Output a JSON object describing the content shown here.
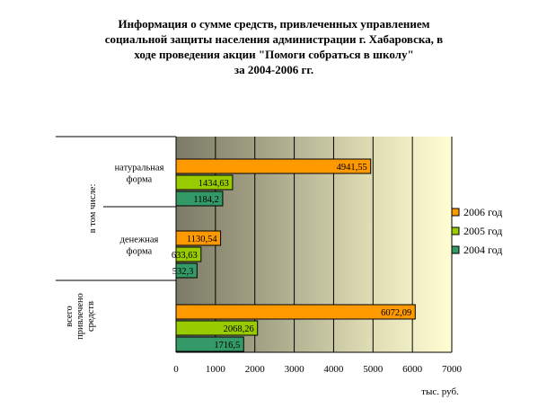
{
  "chart_data": {
    "type": "bar",
    "orientation": "horizontal",
    "title": "Информация о сумме средств, привлеченных управлением социальной защиты населения администрации г. Хабаровска, в ходе проведения акции \"Помоги собраться в школу\" за 2004-2006 гг.",
    "title_lines": [
      "Информация о сумме средств, привлеченных управлением",
      "социальной защиты населения администрации г. Хабаровска, в",
      "ходе проведения акции \"Помоги собраться в школу\"",
      "за 2004-2006 гг."
    ],
    "xlabel": "тыс. руб.",
    "xlim": [
      0,
      7000
    ],
    "xticks": [
      "0",
      "1000",
      "2000",
      "3000",
      "4000",
      "5000",
      "6000",
      "7000"
    ],
    "grid": true,
    "legend_position": "right",
    "group_label": "в том числе:",
    "categories": [
      {
        "id": "natural",
        "label": "натуральная форма",
        "lines": [
          "натуральная",
          "форма"
        ]
      },
      {
        "id": "cash",
        "label": "денежная форма",
        "lines": [
          "денежная",
          "форма"
        ]
      },
      {
        "id": "total",
        "label": "всего привлечено средств",
        "lines": [
          "всего",
          "привлечено",
          "средств"
        ]
      }
    ],
    "series": [
      {
        "name": "2006 год",
        "color": "#FF9900",
        "values": [
          4941.55,
          1130.54,
          6072.09
        ],
        "labels": [
          "4941,55",
          "1130,54",
          "6072,09"
        ]
      },
      {
        "name": "2005 год",
        "color": "#99CC00",
        "values": [
          1434.63,
          633.63,
          2068.26
        ],
        "labels": [
          "1434,63",
          "633,63",
          "2068,26"
        ]
      },
      {
        "name": "2004 год",
        "color": "#339966",
        "values": [
          1184.2,
          532.3,
          1716.5
        ],
        "labels": [
          "1184,2",
          "532,3",
          "1716,5"
        ]
      }
    ]
  }
}
